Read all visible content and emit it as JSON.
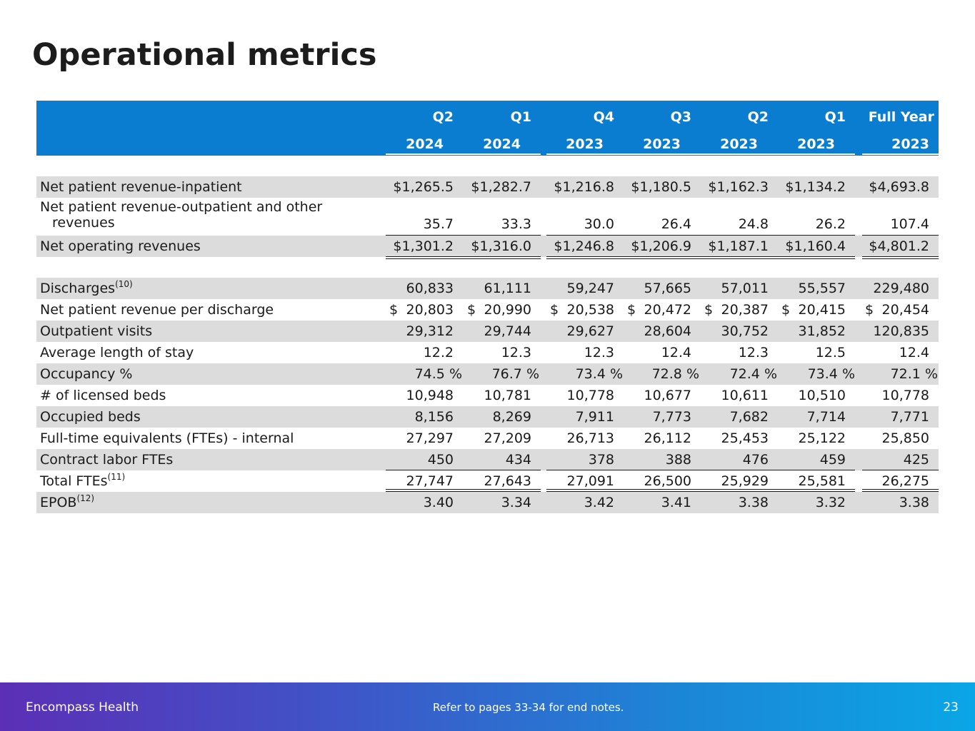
{
  "title": "Operational metrics",
  "header": {
    "quarters": [
      "Q2",
      "Q1",
      "Q4",
      "Q3",
      "Q2",
      "Q1",
      "Full Year"
    ],
    "years": [
      "2024",
      "2024",
      "2023",
      "2023",
      "2023",
      "2023",
      "2023"
    ]
  },
  "rows": [
    {
      "label": "Net patient revenue-inpatient",
      "values": [
        "$1,265.5",
        "$1,282.7",
        "$1,216.8",
        "$1,180.5",
        "$1,162.3",
        "$1,134.2",
        "$4,693.8"
      ]
    },
    {
      "label_line1": "Net patient revenue-outpatient and other",
      "label_line2": "revenues",
      "values": [
        "35.7",
        "33.3",
        "30.0",
        "26.4",
        "24.8",
        "26.2",
        "107.4"
      ]
    },
    {
      "label": "Net operating revenues",
      "values": [
        "$1,301.2",
        "$1,316.0",
        "$1,246.8",
        "$1,206.9",
        "$1,187.1",
        "$1,160.4",
        "$4,801.2"
      ]
    },
    {
      "label": "Discharges",
      "sup": "(10)",
      "values": [
        "60,833",
        "61,111",
        "59,247",
        "57,665",
        "57,011",
        "55,557",
        "229,480"
      ]
    },
    {
      "label": "Net patient revenue per discharge",
      "currency": "$",
      "values": [
        "20,803",
        "20,990",
        "20,538",
        "20,472",
        "20,387",
        "20,415",
        "20,454"
      ]
    },
    {
      "label": "Outpatient visits",
      "values": [
        "29,312",
        "29,744",
        "29,627",
        "28,604",
        "30,752",
        "31,852",
        "120,835"
      ]
    },
    {
      "label": "Average length of stay",
      "values": [
        "12.2",
        "12.3",
        "12.3",
        "12.4",
        "12.3",
        "12.5",
        "12.4"
      ]
    },
    {
      "label": "Occupancy %",
      "values": [
        "74.5 %",
        "76.7 %",
        "73.4 %",
        "72.8 %",
        "72.4 %",
        "73.4 %",
        "72.1 %"
      ]
    },
    {
      "label": "# of licensed beds",
      "values": [
        "10,948",
        "10,781",
        "10,778",
        "10,677",
        "10,611",
        "10,510",
        "10,778"
      ]
    },
    {
      "label": "Occupied beds",
      "values": [
        "8,156",
        "8,269",
        "7,911",
        "7,773",
        "7,682",
        "7,714",
        "7,771"
      ]
    },
    {
      "label": "Full-time equivalents (FTEs) - internal",
      "values": [
        "27,297",
        "27,209",
        "26,713",
        "26,112",
        "25,453",
        "25,122",
        "25,850"
      ]
    },
    {
      "label": "Contract labor FTEs",
      "values": [
        "450",
        "434",
        "378",
        "388",
        "476",
        "459",
        "425"
      ]
    },
    {
      "label": "Total FTEs",
      "sup": "(11)",
      "values": [
        "27,747",
        "27,643",
        "27,091",
        "26,500",
        "25,929",
        "25,581",
        "26,275"
      ]
    },
    {
      "label": "EPOB",
      "sup": "(12)",
      "values": [
        "3.40",
        "3.34",
        "3.42",
        "3.41",
        "3.38",
        "3.32",
        "3.38"
      ]
    }
  ],
  "footer": {
    "company": "Encompass Health",
    "note": "Refer to pages 33-34 for end notes.",
    "page_number": "23"
  }
}
